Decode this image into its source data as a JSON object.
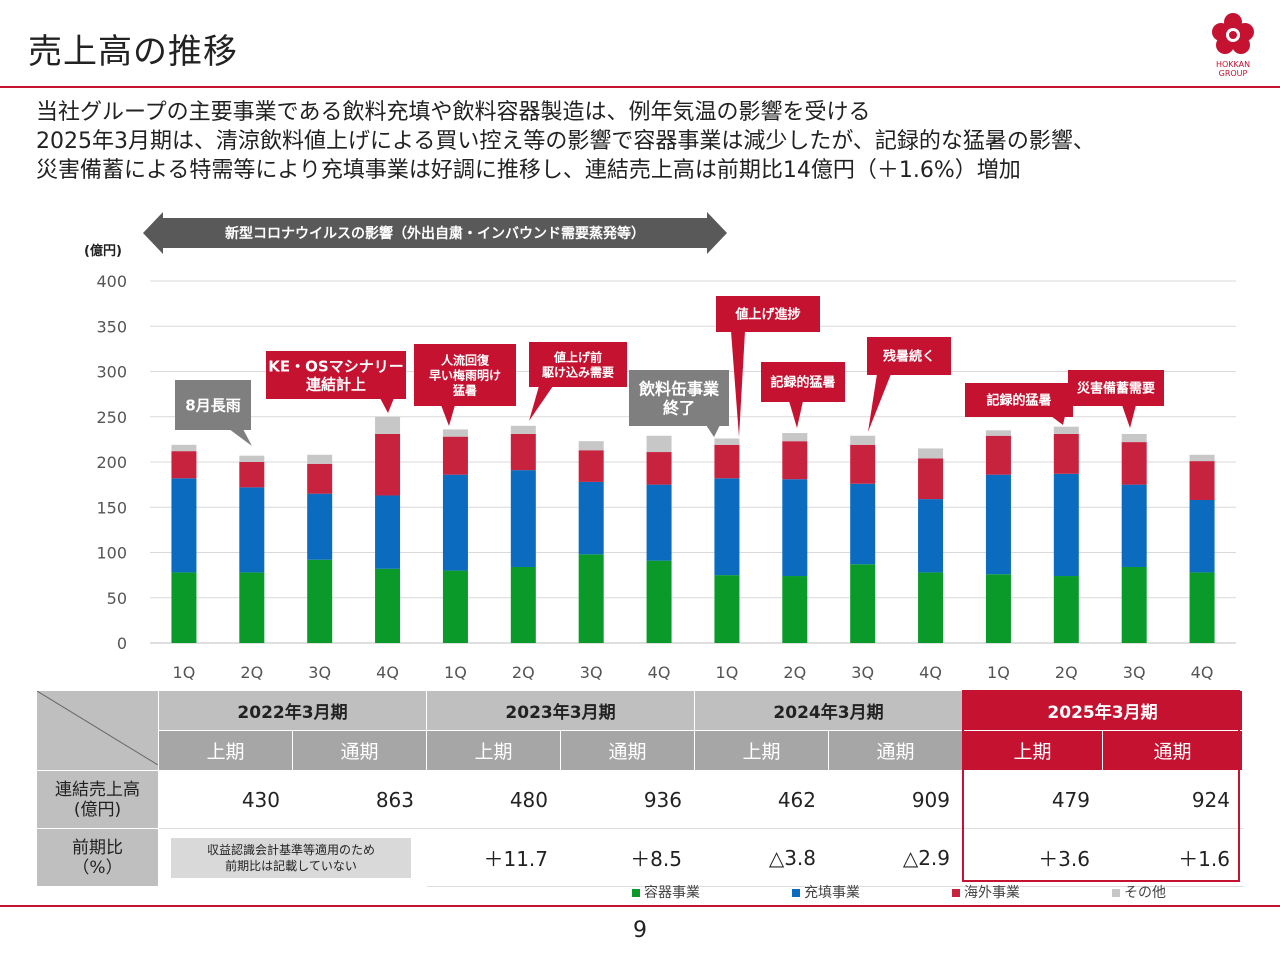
{
  "title": "売上高の推移",
  "logo": {
    "line1": "HOKKAN",
    "line2": "GROUP"
  },
  "description": [
    "当社グループの主要事業である飲料充填や飲料容器製造は、例年気温の影響を受ける",
    "2025年3月期は、清涼飲料値上げによる買い控え等の影響で容器事業は減少したが、記録的な猛暑の影響、",
    "災害備蓄による特需等により充填事業は好調に推移し、連結売上高は前期比14億円（＋1.6%）増加"
  ],
  "covid_banner": "新型コロナウイルスの影響（外出自粛・インバウンド需要蒸発等）",
  "colors": {
    "container": "#0a9a2a",
    "filling": "#0a6bbf",
    "overseas": "#c8233e",
    "other": "#c7c7c7",
    "accent": "#c41230",
    "callout": "#c41230",
    "callout_gray": "#7f7f7f"
  },
  "chart_data": {
    "type": "bar",
    "stacked": true,
    "unit_label": "(億円)",
    "categories": [
      "1Q",
      "2Q",
      "3Q",
      "4Q",
      "1Q",
      "2Q",
      "3Q",
      "4Q",
      "1Q",
      "2Q",
      "3Q",
      "4Q",
      "1Q",
      "2Q",
      "3Q",
      "4Q"
    ],
    "ylim": [
      0,
      400
    ],
    "yticks": [
      0,
      50,
      100,
      150,
      200,
      250,
      300,
      350,
      400
    ],
    "series": [
      {
        "name": "容器事業",
        "values": [
          78,
          78,
          92,
          82,
          80,
          84,
          98,
          91,
          75,
          74,
          87,
          78,
          76,
          74,
          84,
          78
        ]
      },
      {
        "name": "充填事業",
        "values": [
          104,
          94,
          73,
          81,
          106,
          107,
          80,
          84,
          107,
          107,
          89,
          81,
          110,
          113,
          91,
          80
        ]
      },
      {
        "name": "海外事業",
        "values": [
          30,
          28,
          33,
          68,
          42,
          40,
          35,
          36,
          37,
          42,
          43,
          45,
          43,
          44,
          47,
          43
        ]
      },
      {
        "name": "その他",
        "values": [
          7,
          7,
          10,
          19,
          8,
          9,
          10,
          18,
          7,
          9,
          10,
          11,
          6,
          8,
          9,
          7
        ]
      }
    ],
    "annotations": [
      {
        "text": "8月長雨",
        "bar": 1,
        "style": "gray"
      },
      {
        "text": "KE・OSマシナリー\n連結計上",
        "bar": 3,
        "style": "red"
      },
      {
        "text": "人流回復\n早い梅雨明け\n猛暑",
        "bar": 4,
        "style": "red"
      },
      {
        "text": "値上げ前\n駆け込み需要",
        "bar": 5,
        "style": "red"
      },
      {
        "text": "飲料缶事業\n終了",
        "bar": 7,
        "style": "gray"
      },
      {
        "text": "値上げ進捗",
        "bar": 8,
        "style": "red"
      },
      {
        "text": "記録的猛暑",
        "bar": 9,
        "style": "red"
      },
      {
        "text": "残暑続く",
        "bar": 10,
        "style": "red"
      },
      {
        "text": "記録的猛暑",
        "bar": 13,
        "style": "red"
      },
      {
        "text": "災害備蓄需要",
        "bar": 14,
        "style": "red"
      }
    ]
  },
  "table": {
    "fiscal_years": [
      "2022年3月期",
      "2023年3月期",
      "2024年3月期",
      "2025年3月期"
    ],
    "half_label": "上期",
    "full_label": "通期",
    "row_sales_label": [
      "連結売上高",
      "(億円)"
    ],
    "row_yoy_label": [
      "前期比",
      "（%）"
    ],
    "sales": [
      "430",
      "863",
      "480",
      "936",
      "462",
      "909",
      "479",
      "924"
    ],
    "yoy_note": [
      "収益認識会計基準等適用のため",
      "前期比は記載していない"
    ],
    "yoy": [
      "＋11.7",
      "＋8.5",
      "△3.8",
      "△2.9",
      "＋3.6",
      "＋1.6"
    ]
  },
  "legend": [
    "容器事業",
    "充填事業",
    "海外事業",
    "その他"
  ],
  "page_number": "9"
}
